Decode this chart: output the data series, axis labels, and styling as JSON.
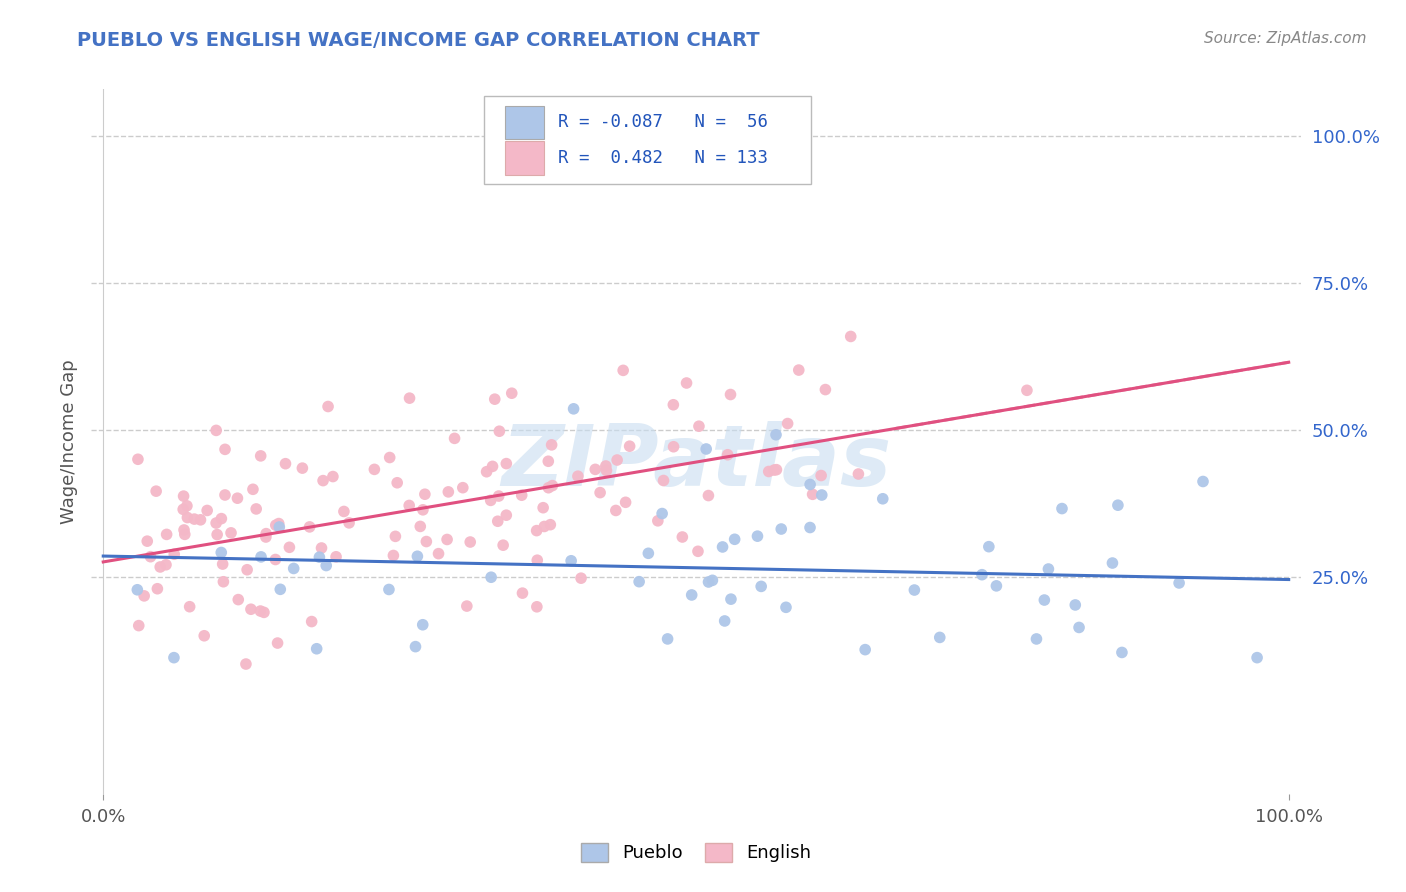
{
  "title": "PUEBLO VS ENGLISH WAGE/INCOME GAP CORRELATION CHART",
  "source_text": "Source: ZipAtlas.com",
  "ylabel": "Wage/Income Gap",
  "title_color": "#4472c4",
  "source_color": "#888888",
  "pueblo_color": "#aec6e8",
  "english_color": "#f4b8c8",
  "pueblo_line_color": "#4472c4",
  "english_line_color": "#e05080",
  "watermark": "ZIPatlas",
  "watermark_color": "#c8ddf0",
  "background_color": "#ffffff",
  "grid_color": "#cccccc",
  "pueblo_r": -0.087,
  "pueblo_n": 56,
  "english_r": 0.482,
  "english_n": 133,
  "right_ytick_labels": [
    "100.0%",
    "75.0%",
    "50.0%",
    "25.0%"
  ],
  "right_ytick_positions": [
    1.0,
    0.75,
    0.5,
    0.25
  ],
  "xtick_labels": [
    "0.0%",
    "100.0%"
  ],
  "xtick_positions": [
    0.0,
    1.0
  ],
  "bottom_legend_labels": [
    "Pueblo",
    "English"
  ],
  "ylim": [
    -0.12,
    1.08
  ],
  "xlim": [
    -0.01,
    1.01
  ],
  "legend_r1": "R = -0.087",
  "legend_n1": "N =  56",
  "legend_r2": "R =  0.482",
  "legend_n2": "N = 133",
  "english_line_intercept": 0.275,
  "english_line_slope": 0.34,
  "pueblo_line_intercept": 0.285,
  "pueblo_line_slope": -0.04
}
